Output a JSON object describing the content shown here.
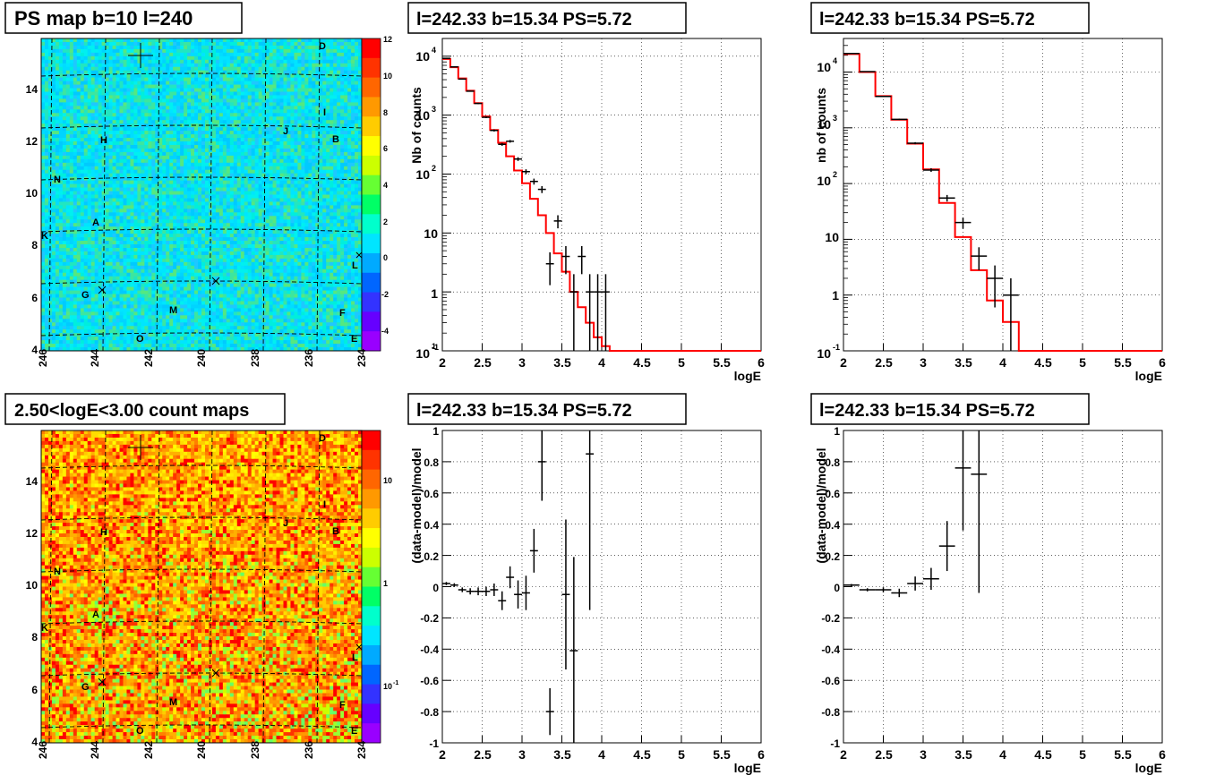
{
  "colors": {
    "model_line": "#ff0000",
    "data_marker": "#000000",
    "grid": "#000000",
    "background": "#ffffff"
  },
  "maps": [
    {
      "title": "PS map b=10 l=240",
      "colorscale": "linear",
      "color_ticks": [
        "12",
        "10",
        "8",
        "6",
        "4",
        "2",
        "0",
        "-2",
        "-4"
      ],
      "x_ticks": [
        "246",
        "244",
        "242",
        "240",
        "238",
        "236",
        "234"
      ],
      "y_ticks": [
        "14",
        "12",
        "10",
        "8",
        "6",
        "4"
      ],
      "source_labels": [
        "D",
        "I",
        "J",
        "B",
        "H",
        "N",
        "A",
        "K",
        "L",
        "G",
        "M",
        "F",
        "O",
        "E"
      ]
    },
    {
      "title": "2.50<logE<3.00 count maps",
      "colorscale": "log",
      "color_ticks": [
        "10",
        "1",
        "10",
        "-1"
      ],
      "x_ticks": [
        "246",
        "244",
        "242",
        "240",
        "238",
        "236",
        "234"
      ],
      "y_ticks": [
        "14",
        "12",
        "10",
        "8",
        "6",
        "4"
      ],
      "source_labels": [
        "D",
        "I",
        "J",
        "B",
        "H",
        "N",
        "A",
        "K",
        "L",
        "G",
        "M",
        "F",
        "O",
        "E"
      ]
    }
  ],
  "chart_data": [
    {
      "type": "line",
      "title": "l=242.33 b=15.34 PS=5.72",
      "xlabel": "logE",
      "ylabel": "Nb of counts",
      "xlim": [
        2,
        6
      ],
      "ylim": [
        0.1,
        20000
      ],
      "yscale": "log",
      "grid": true,
      "x_ticks": [
        "2",
        "2.5",
        "3",
        "3.5",
        "4",
        "4.5",
        "5",
        "5.5",
        "6"
      ],
      "y_ticks": [
        "10",
        "1",
        "10",
        "10",
        "10",
        "10",
        "1",
        "10"
      ],
      "series": [
        {
          "bin_edges": [
            2.0,
            2.1,
            2.2,
            2.3,
            2.4,
            2.5,
            2.6,
            2.7,
            2.8,
            2.9,
            3.0,
            3.1,
            3.2,
            3.3,
            3.4,
            3.5,
            3.6,
            3.7,
            3.8,
            3.9,
            4.0,
            4.1,
            4.2,
            4.3,
            6.0
          ],
          "values": [
            9000,
            6500,
            4200,
            2600,
            1600,
            950,
            560,
            340,
            200,
            115,
            70,
            38,
            20,
            10,
            4.5,
            2.2,
            1,
            0.55,
            0.3,
            0.17,
            0.12,
            0.1,
            0.1,
            0.1
          ]
        },
        {
          "x": [
            2.05,
            2.15,
            2.25,
            2.35,
            2.45,
            2.55,
            2.65,
            2.75,
            2.85,
            2.95,
            3.05,
            3.15,
            3.25,
            3.35,
            3.45,
            3.55,
            3.65,
            3.75,
            3.85,
            3.95,
            4.05
          ],
          "values": [
            9200,
            6600,
            4100,
            2550,
            1580,
            920,
            550,
            320,
            360,
            180,
            110,
            75,
            55,
            3,
            16,
            4,
            1,
            4,
            1,
            1,
            1
          ],
          "errors": [
            96,
            81,
            64,
            50,
            40,
            30,
            23,
            18,
            19,
            13,
            10.5,
            8.7,
            7.4,
            1.7,
            4,
            2,
            1,
            2,
            1,
            1,
            1
          ]
        }
      ]
    },
    {
      "type": "line",
      "title": "l=242.33 b=15.34 PS=5.72",
      "xlabel": "logE",
      "ylabel": "nb of counts",
      "xlim": [
        2,
        6
      ],
      "ylim": [
        0.1,
        40000
      ],
      "yscale": "log",
      "grid": true,
      "x_ticks": [
        "2",
        "2.5",
        "3",
        "3.5",
        "4",
        "4.5",
        "5",
        "5.5",
        "6"
      ],
      "y_ticks": [
        "10",
        "1",
        "10",
        "10",
        "10",
        "10",
        "1",
        "10"
      ],
      "series": [
        {
          "bin_edges": [
            2.0,
            2.2,
            2.4,
            2.6,
            2.8,
            3.0,
            3.2,
            3.4,
            3.6,
            3.8,
            4.0,
            4.2,
            6.0
          ],
          "values": [
            21000,
            10000,
            3700,
            1400,
            520,
            180,
            45,
            11,
            2.8,
            0.8,
            0.33,
            0.1
          ]
        },
        {
          "x": [
            2.1,
            2.3,
            2.5,
            2.7,
            2.9,
            3.1,
            3.3,
            3.5,
            3.7,
            3.9,
            4.1
          ],
          "values": [
            21500,
            10200,
            3650,
            1420,
            530,
            175,
            55,
            20,
            5,
            2,
            1
          ],
          "errors": [
            147,
            101,
            60,
            38,
            23,
            13,
            7.4,
            4.5,
            2.2,
            1.4,
            1
          ]
        }
      ]
    },
    {
      "type": "scatter",
      "title": "l=242.33 b=15.34 PS=5.72",
      "xlabel": "logE",
      "ylabel": "(data-model)/model",
      "xlim": [
        2,
        6
      ],
      "ylim": [
        -1,
        1
      ],
      "grid": true,
      "x_ticks": [
        "2",
        "2.5",
        "3",
        "3.5",
        "4",
        "4.5",
        "5",
        "5.5",
        "6"
      ],
      "y_ticks": [
        "1",
        "0.8",
        "0.6",
        "0.4",
        "0.2",
        "0",
        "-0.2",
        "-0.4",
        "-0.6",
        "-0.8",
        "-1"
      ],
      "series": [
        {
          "x": [
            2.05,
            2.15,
            2.25,
            2.35,
            2.45,
            2.55,
            2.65,
            2.75,
            2.85,
            2.95,
            3.05,
            3.15,
            3.25,
            3.35,
            3.55,
            3.65,
            3.85
          ],
          "values": [
            0.02,
            0.01,
            -0.02,
            -0.03,
            -0.03,
            -0.03,
            -0.02,
            -0.09,
            0.06,
            -0.05,
            -0.04,
            0.23,
            0.8,
            -0.8,
            -0.05,
            -0.41,
            0.85
          ],
          "errors": [
            0.01,
            0.012,
            0.015,
            0.02,
            0.025,
            0.03,
            0.04,
            0.06,
            0.07,
            0.09,
            0.11,
            0.14,
            0.25,
            0.15,
            0.48,
            0.6,
            1.0
          ]
        }
      ]
    },
    {
      "type": "scatter",
      "title": "l=242.33 b=15.34 PS=5.72",
      "xlabel": "logE",
      "ylabel": "(data-model)/model",
      "xlim": [
        2,
        6
      ],
      "ylim": [
        -1,
        1
      ],
      "grid": true,
      "x_ticks": [
        "2",
        "2.5",
        "3",
        "3.5",
        "4",
        "4.5",
        "5",
        "5.5",
        "6"
      ],
      "y_ticks": [
        "1",
        "0.8",
        "0.6",
        "0.4",
        "0.2",
        "0",
        "-0.2",
        "-0.4",
        "-0.6",
        "-0.8",
        "-1"
      ],
      "series": [
        {
          "x": [
            2.1,
            2.3,
            2.5,
            2.7,
            2.9,
            3.1,
            3.3,
            3.5,
            3.7
          ],
          "values": [
            0.01,
            -0.02,
            -0.02,
            -0.04,
            0.02,
            0.05,
            0.26,
            0.76,
            0.72
          ],
          "errors": [
            0.007,
            0.01,
            0.016,
            0.027,
            0.045,
            0.07,
            0.16,
            0.4,
            0.76
          ]
        }
      ]
    }
  ]
}
